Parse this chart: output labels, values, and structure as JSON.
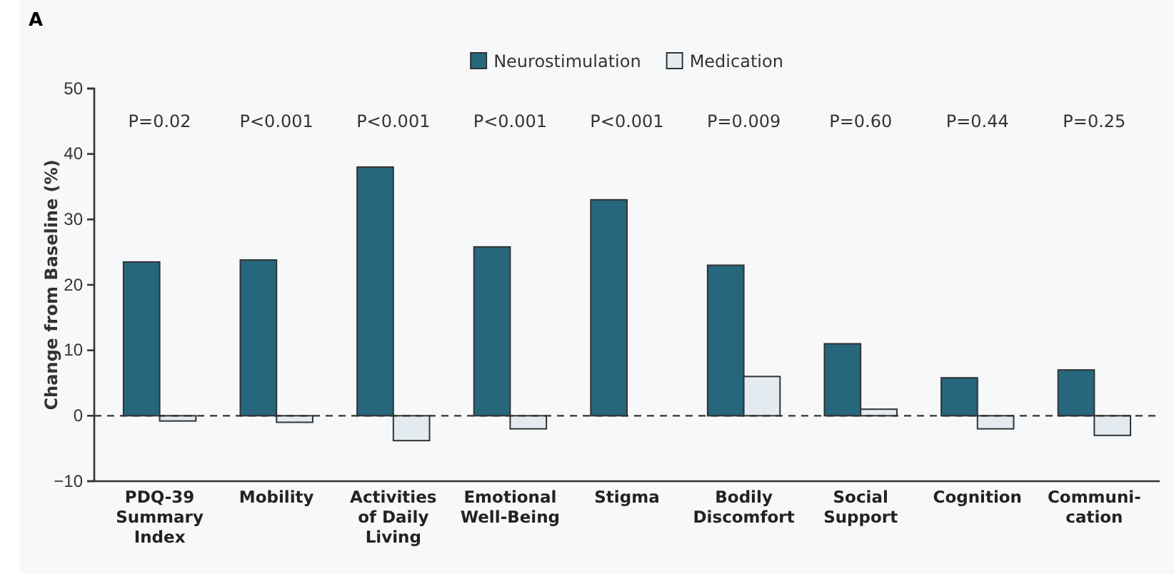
{
  "chart_data": {
    "type": "bar",
    "title": "A",
    "ylabel": "Change from Baseline (%)",
    "categories": [
      "PDQ-39\nSummary\nIndex",
      "Mobility",
      "Activities\nof Daily\nLiving",
      "Emotional\nWell-Being",
      "Stigma",
      "Bodily\nDiscomfort",
      "Social\nSupport",
      "Cognition",
      "Communi-\ncation"
    ],
    "series": [
      {
        "name": "Neurostimulation",
        "color": "#26677e",
        "values": [
          23.5,
          23.8,
          38,
          25.8,
          33,
          23,
          11,
          5.8,
          7
        ]
      },
      {
        "name": "Medication",
        "color": "#e3ebf0",
        "values": [
          -0.8,
          -1,
          -3.8,
          -2,
          0,
          6,
          1,
          -2,
          -3
        ]
      }
    ],
    "ylim": [
      -10,
      50
    ],
    "yticks": [
      {
        "value": -10,
        "label": "−10"
      },
      0,
      10,
      20,
      30,
      40,
      50
    ],
    "grid": false,
    "legend": "top",
    "ref_lines": [
      {
        "axis": "y",
        "value": 0,
        "line_style": "dashed",
        "color": "#333333"
      }
    ],
    "annotations": [
      "P=0.02",
      "P<0.001",
      "P<0.001",
      "P<0.001",
      "P<0.001",
      "P=0.009",
      "P=0.60",
      "P=0.44",
      "P=0.25"
    ]
  }
}
